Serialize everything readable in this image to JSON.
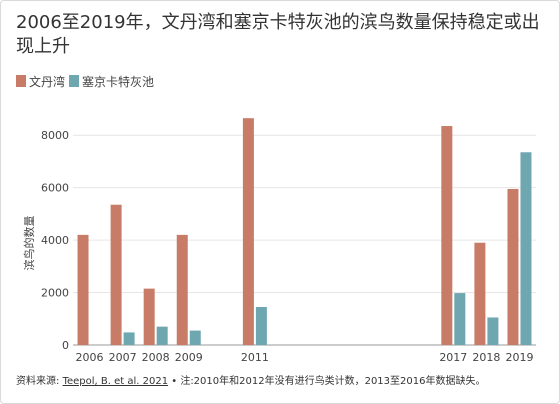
{
  "chart_data": {
    "type": "bar",
    "title": "2006至2019年，文丹湾和塞京卡特灰池的滨鸟数量保持稳定或出现上升",
    "ylabel": "滨鸟的数量",
    "xlabel": "",
    "ylim": [
      0,
      9000
    ],
    "yticks": [
      0,
      2000,
      4000,
      6000,
      8000
    ],
    "grid": true,
    "legend": "top-left",
    "categories": [
      "2006",
      "2007",
      "2008",
      "2009",
      "2011",
      "2017",
      "2018",
      "2019"
    ],
    "x": [
      2006,
      2007,
      2008,
      2009,
      2011,
      2017,
      2018,
      2019
    ],
    "series": [
      {
        "name": "文丹湾",
        "color": "#c87c68",
        "values": [
          4200,
          5350,
          2150,
          4200,
          8650,
          8350,
          3900,
          5950
        ]
      },
      {
        "name": "塞京卡特灰池",
        "color": "#6fa7b1",
        "values": [
          null,
          480,
          700,
          550,
          1450,
          1980,
          1050,
          7350
        ]
      }
    ]
  },
  "footer": {
    "prefix": "资料来源: ",
    "link": "Teepol, B. et al. 2021",
    "note": " • 注:2010年和2012年没有进行鸟类计数，2013至2016年数据缺失。"
  }
}
